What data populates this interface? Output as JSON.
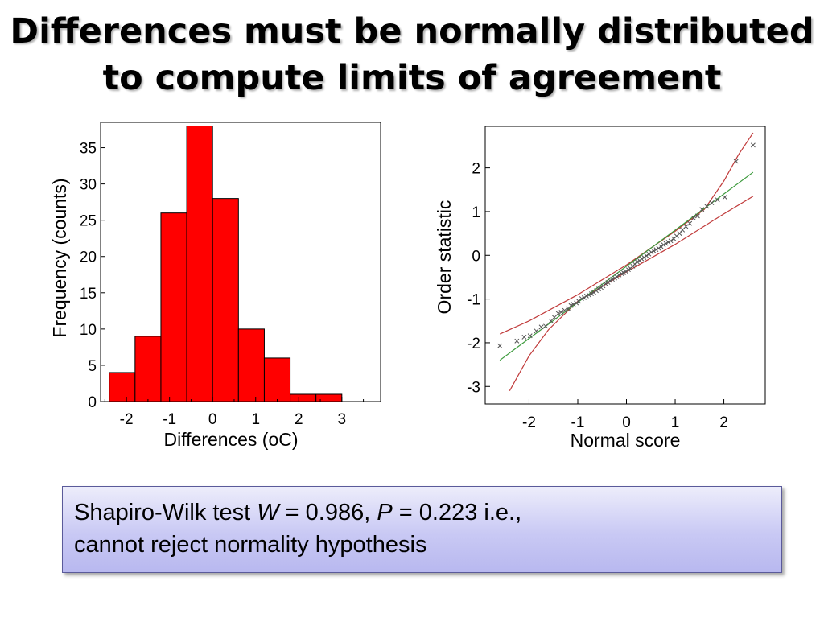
{
  "title": {
    "line1": "Differences must be normally distributed",
    "line2": "to compute limits of agreement"
  },
  "chart_data": [
    {
      "type": "bar",
      "subtype": "histogram",
      "xlabel": "Differences (oC)",
      "ylabel": "Frequency (counts)",
      "bin_width": 0.6,
      "bin_starts": [
        -2.4,
        -1.8,
        -1.2,
        -0.6,
        0.0,
        0.6,
        1.2,
        1.8,
        2.4
      ],
      "values": [
        4,
        9,
        26,
        38,
        28,
        10,
        6,
        1,
        1
      ],
      "xlim": [
        -2.6,
        3.9
      ],
      "ylim": [
        0,
        38.5
      ],
      "xticks": [
        -2,
        -1,
        0,
        1,
        2,
        3
      ],
      "xtick_labels": [
        "-2",
        "-1",
        "0",
        "1",
        "2",
        "3"
      ],
      "yticks": [
        0,
        5,
        10,
        15,
        20,
        25,
        30,
        35
      ],
      "ytick_labels": [
        "0",
        "5",
        "10",
        "15",
        "20",
        "25",
        "30",
        "35"
      ],
      "bar_color": "#ff0000",
      "grid": false
    },
    {
      "type": "scatter",
      "subtype": "normal-probability-plot",
      "xlabel": "Normal score",
      "ylabel": "Order statistic",
      "xlim": [
        -2.9,
        2.85
      ],
      "ylim": [
        -3.4,
        2.95
      ],
      "xticks": [
        -2,
        -1,
        0,
        1,
        2
      ],
      "xtick_labels": [
        "-2",
        "-1",
        "0",
        "1",
        "2"
      ],
      "yticks": [
        -3,
        -2,
        -1,
        0,
        1,
        2
      ],
      "ytick_labels": [
        "-3",
        "-2",
        "-1",
        "0",
        "1",
        "2"
      ],
      "marker": "x",
      "point_color": "#555555",
      "points": [
        [
          -2.6,
          -2.07
        ],
        [
          -2.25,
          -1.96
        ],
        [
          -2.1,
          -1.87
        ],
        [
          -1.98,
          -1.84
        ],
        [
          -1.85,
          -1.73
        ],
        [
          -1.75,
          -1.64
        ],
        [
          -1.66,
          -1.62
        ],
        [
          -1.55,
          -1.5
        ],
        [
          -1.48,
          -1.42
        ],
        [
          -1.4,
          -1.33
        ],
        [
          -1.34,
          -1.3
        ],
        [
          -1.27,
          -1.26
        ],
        [
          -1.2,
          -1.22
        ],
        [
          -1.14,
          -1.15
        ],
        [
          -1.09,
          -1.12
        ],
        [
          -1.03,
          -1.09
        ],
        [
          -0.98,
          -1.05
        ],
        [
          -0.92,
          -0.99
        ],
        [
          -0.87,
          -0.97
        ],
        [
          -0.82,
          -0.93
        ],
        [
          -0.77,
          -0.91
        ],
        [
          -0.72,
          -0.88
        ],
        [
          -0.67,
          -0.85
        ],
        [
          -0.62,
          -0.81
        ],
        [
          -0.57,
          -0.77
        ],
        [
          -0.52,
          -0.74
        ],
        [
          -0.48,
          -0.7
        ],
        [
          -0.43,
          -0.65
        ],
        [
          -0.38,
          -0.62
        ],
        [
          -0.34,
          -0.58
        ],
        [
          -0.29,
          -0.55
        ],
        [
          -0.24,
          -0.52
        ],
        [
          -0.2,
          -0.49
        ],
        [
          -0.15,
          -0.45
        ],
        [
          -0.1,
          -0.42
        ],
        [
          -0.06,
          -0.4
        ],
        [
          -0.01,
          -0.37
        ],
        [
          0.04,
          -0.33
        ],
        [
          0.08,
          -0.3
        ],
        [
          0.13,
          -0.25
        ],
        [
          0.17,
          -0.2
        ],
        [
          0.22,
          -0.15
        ],
        [
          0.27,
          -0.12
        ],
        [
          0.31,
          -0.08
        ],
        [
          0.36,
          -0.05
        ],
        [
          0.41,
          -0.01
        ],
        [
          0.46,
          0.03
        ],
        [
          0.51,
          0.07
        ],
        [
          0.56,
          0.1
        ],
        [
          0.61,
          0.13
        ],
        [
          0.66,
          0.16
        ],
        [
          0.71,
          0.2
        ],
        [
          0.76,
          0.24
        ],
        [
          0.81,
          0.27
        ],
        [
          0.86,
          0.3
        ],
        [
          0.91,
          0.33
        ],
        [
          0.97,
          0.38
        ],
        [
          1.03,
          0.44
        ],
        [
          1.09,
          0.5
        ],
        [
          1.15,
          0.58
        ],
        [
          1.22,
          0.66
        ],
        [
          1.3,
          0.73
        ],
        [
          1.38,
          0.85
        ],
        [
          1.46,
          0.9
        ],
        [
          1.55,
          1.05
        ],
        [
          1.65,
          1.12
        ],
        [
          1.75,
          1.2
        ],
        [
          1.87,
          1.27
        ],
        [
          2.02,
          1.33
        ],
        [
          2.25,
          2.15
        ],
        [
          2.6,
          2.52
        ]
      ],
      "fit_line": [
        [
          -2.6,
          -2.4
        ],
        [
          2.6,
          1.9
        ]
      ],
      "fit_color": "#3c9a3c",
      "confidence_upper": [
        [
          -2.6,
          -1.8
        ],
        [
          -2.0,
          -1.5
        ],
        [
          -1.0,
          -0.9
        ],
        [
          0.0,
          -0.22
        ],
        [
          1.0,
          0.55
        ],
        [
          1.6,
          1.05
        ],
        [
          2.0,
          1.7
        ],
        [
          2.3,
          2.3
        ],
        [
          2.6,
          2.8
        ]
      ],
      "confidence_lower": [
        [
          -2.4,
          -3.1
        ],
        [
          -2.0,
          -2.3
        ],
        [
          -1.6,
          -1.7
        ],
        [
          -1.0,
          -1.05
        ],
        [
          0.0,
          -0.38
        ],
        [
          1.0,
          0.25
        ],
        [
          2.0,
          0.95
        ],
        [
          2.6,
          1.35
        ]
      ],
      "confidence_color": "#c03a3a",
      "grid": false
    }
  ],
  "callout": {
    "text_pre": "Shapiro-Wilk test ",
    "w_symbol": "W",
    "w_value": " = 0.986, ",
    "p_symbol": "P",
    "p_value": " = 0.223 i.e.,",
    "line2": "cannot reject normality hypothesis",
    "background_color": "#c9c9f4",
    "border_color": "#5a5a9a"
  }
}
